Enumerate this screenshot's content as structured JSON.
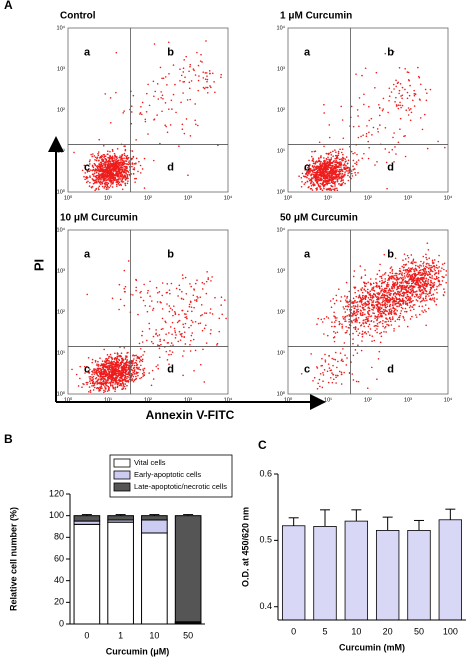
{
  "flow_cytometry": {
    "panel": "A",
    "x_label": "Annexin V-FITC",
    "y_label": "PI",
    "tick_labels": [
      "10⁰",
      "10¹",
      "10²",
      "10³",
      "10⁴"
    ],
    "quadrant_labels": [
      "a",
      "b",
      "c",
      "d"
    ],
    "plots": [
      {
        "title": "Control"
      },
      {
        "title": "1 μM Curcumin"
      },
      {
        "title": "10 μM Curcumin"
      },
      {
        "title": "50 μM Curcumin"
      }
    ]
  },
  "chart_data": [
    {
      "type": "stacked_bar",
      "panel": "B",
      "y_label": "Relative cell number (%)",
      "x_label": "Curcumin (μM)",
      "categories": [
        "0",
        "1",
        "10",
        "50"
      ],
      "series": [
        {
          "name": "Vital cells",
          "color": "#ffffff",
          "values": [
            92,
            94,
            84,
            1
          ],
          "errors": [
            2,
            2,
            1,
            0.5
          ]
        },
        {
          "name": "Early-apoptotic cells",
          "color": "#ccccf2",
          "values": [
            3,
            2,
            12,
            1
          ],
          "errors": [
            1,
            1,
            3,
            0.5
          ]
        },
        {
          "name": "Late-apoptotic/necrotic cells",
          "color": "#555555",
          "values": [
            5,
            4,
            4,
            98
          ],
          "errors": [
            1,
            1,
            1,
            1
          ]
        }
      ],
      "ylim": [
        0,
        120
      ],
      "yticks": [
        0,
        20,
        40,
        60,
        80,
        100,
        120
      ]
    },
    {
      "type": "bar",
      "panel": "C",
      "y_label": "O.D. at 450/620 nm",
      "x_label": "Curcumin (mM)",
      "categories": [
        "0",
        "5",
        "10",
        "20",
        "50",
        "100"
      ],
      "values": [
        0.522,
        0.521,
        0.529,
        0.515,
        0.515,
        0.531
      ],
      "errors": [
        0.012,
        0.025,
        0.017,
        0.02,
        0.015,
        0.016
      ],
      "color": "#d8d8f6",
      "ylim": [
        0.38,
        0.6
      ],
      "yticks": [
        0.4,
        0.5,
        0.6
      ]
    }
  ]
}
